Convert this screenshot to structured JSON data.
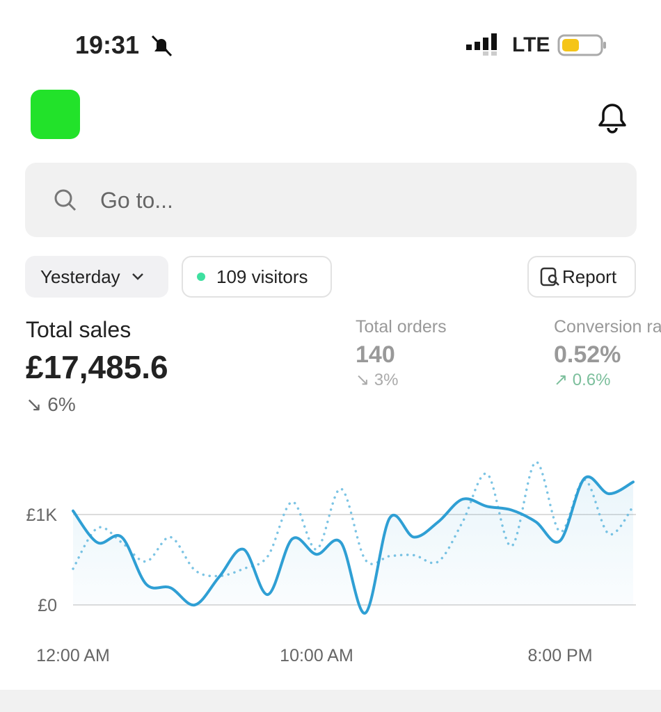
{
  "status": {
    "time": "19:31",
    "network": "LTE"
  },
  "search": {
    "placeholder": "Go to..."
  },
  "filters": {
    "period": "Yesterday",
    "visitors": "109 visitors",
    "report": "Report"
  },
  "metrics": [
    {
      "label": "Total sales",
      "value": "£17,485.6",
      "change": "6%"
    },
    {
      "label": "Total orders",
      "value": "140",
      "change": "3%"
    },
    {
      "label": "Conversion rate",
      "value": "0.52%",
      "change": "0.6%"
    }
  ],
  "chart_data": {
    "type": "line",
    "categories": [
      "12:00 AM",
      null,
      null,
      null,
      null,
      null,
      null,
      null,
      null,
      null,
      "10:00 AM",
      null,
      null,
      null,
      null,
      null,
      null,
      null,
      null,
      null,
      "8:00 PM",
      null,
      null,
      null
    ],
    "series": [
      {
        "color": "#2f9fd4",
        "style": "solid",
        "values": [
          1040,
          690,
          750,
          230,
          190,
          0,
          310,
          615,
          115,
          730,
          560,
          690,
          -90,
          960,
          750,
          920,
          1170,
          1090,
          1050,
          920,
          710,
          1400,
          1230,
          1360
        ]
      },
      {
        "color": "#7cc4e4",
        "style": "dotted",
        "values": [
          400,
          850,
          690,
          480,
          750,
          385,
          320,
          400,
          540,
          1140,
          615,
          1285,
          500,
          540,
          550,
          480,
          920,
          1450,
          650,
          1580,
          810,
          1385,
          785,
          1090
        ]
      }
    ],
    "ylim": [
      -200,
      1700
    ],
    "yticks": [
      {
        "value": 0,
        "label": "£0"
      },
      {
        "value": 1000,
        "label": "£1K"
      }
    ],
    "grid": true
  }
}
